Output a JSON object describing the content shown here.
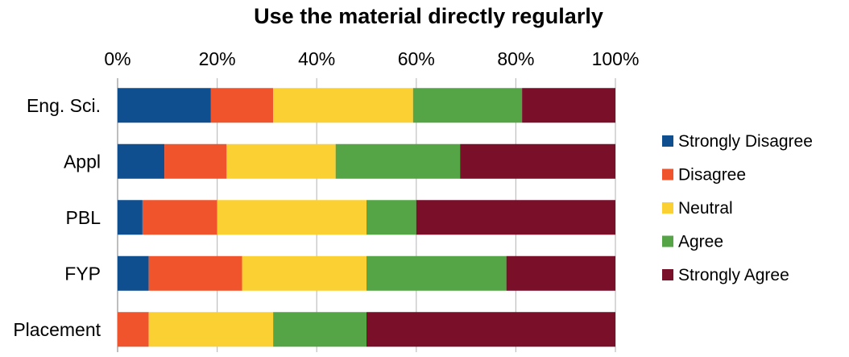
{
  "chart_data": {
    "type": "bar",
    "orientation": "horizontal",
    "stacked": true,
    "percent_stacked": true,
    "title": "Use the material directly regularly",
    "xlabel": "",
    "ylabel": "",
    "xlim": [
      0,
      100
    ],
    "x_ticks": [
      "0%",
      "20%",
      "40%",
      "60%",
      "80%",
      "100%"
    ],
    "x_axis_position": "top",
    "grid": true,
    "legend_position": "right",
    "categories": [
      "Eng. Sci.",
      "Appl",
      "PBL",
      "FYP",
      "Placement"
    ],
    "series": [
      {
        "name": "Strongly Disagree",
        "color": "#0f4f8f",
        "values": [
          18.75,
          9.4,
          5,
          6.25,
          0
        ]
      },
      {
        "name": "Disagree",
        "color": "#f0542c",
        "values": [
          12.5,
          12.5,
          15,
          18.75,
          6.25
        ]
      },
      {
        "name": "Neutral",
        "color": "#fbd032",
        "values": [
          28.1,
          21.9,
          30,
          25,
          25
        ]
      },
      {
        "name": "Agree",
        "color": "#55a546",
        "values": [
          21.9,
          25,
          10,
          28.1,
          18.75
        ]
      },
      {
        "name": "Strongly Agree",
        "color": "#790f29",
        "values": [
          18.75,
          31.2,
          40,
          21.9,
          50
        ]
      }
    ]
  }
}
